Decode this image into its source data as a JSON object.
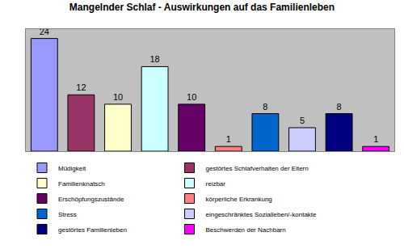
{
  "chart_data": {
    "type": "bar",
    "title": "Mangelnder Schlaf - Auswirkungen auf das Familienleben",
    "categories": [
      "Müdigkeit",
      "gestörtes Schlafverhalten der Eltern",
      "Familienknatsch",
      "reizbar",
      "Erschöpfungszustände",
      "körperliche Erkrankung",
      "Stress",
      "eingeschränktes Sozialleben/-kontakte",
      "gestörtes Familienleben",
      "Beschwerden der Nachbarn"
    ],
    "values": [
      24,
      12,
      10,
      18,
      10,
      1,
      8,
      5,
      8,
      1
    ],
    "colors": [
      "#9999FF",
      "#993366",
      "#FFFFCC",
      "#CCFFFF",
      "#660066",
      "#FF8080",
      "#0066CC",
      "#CCCCFF",
      "#000080",
      "#FF00FF"
    ],
    "ylim": [
      0,
      26
    ],
    "grid": false,
    "legend": "bottom",
    "data_labels": true,
    "tick_labels": false
  }
}
